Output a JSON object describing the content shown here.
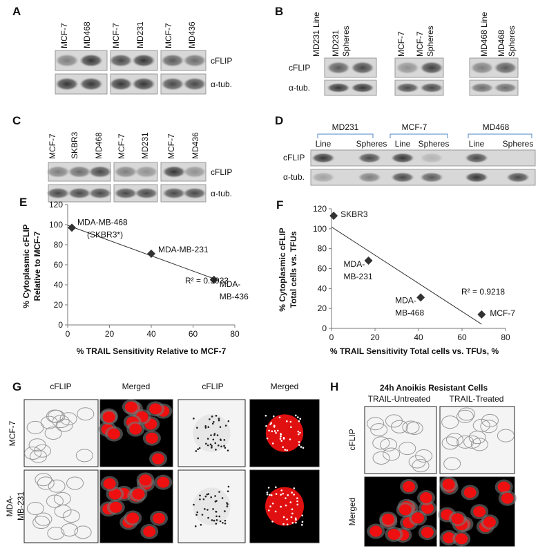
{
  "panels": {
    "A": {
      "label": "A",
      "lanes": [
        "MCF-7",
        "MD468",
        "MCF-7",
        "MD231",
        "MCF-7",
        "MD436"
      ],
      "rows": [
        "cFLIP",
        "α-tub."
      ]
    },
    "B": {
      "label": "B",
      "lanes": [
        [
          "MD231 Line"
        ],
        [
          "MD231",
          "Spheres"
        ],
        [
          "MCF-7"
        ],
        [
          "MCF-7",
          "Spheres"
        ],
        [
          "MD468 Line"
        ],
        [
          "MD468",
          "Spheres"
        ]
      ],
      "rows": [
        "cFLIP",
        "α-tub."
      ]
    },
    "C": {
      "label": "C",
      "lanes": [
        "MCF-7",
        "SKBR3",
        "MD468",
        "MCF-7",
        "MD231",
        "MCF-7",
        "MD436"
      ],
      "rows": [
        "cFLIP",
        "α-tub."
      ]
    },
    "D": {
      "label": "D",
      "groups": [
        "MD231",
        "MCF-7",
        "MD468"
      ],
      "lanes": [
        "Line",
        "Spheres",
        "Line",
        "Spheres",
        "Line",
        "Spheres"
      ],
      "rows": [
        "cFLIP",
        "α-tub."
      ]
    },
    "G": {
      "label": "G",
      "columns": [
        "cFLIP",
        "Merged",
        "cFLIP",
        "Merged"
      ],
      "rows": [
        [
          "MCF-7"
        ],
        [
          "MDA-",
          "MB-231"
        ]
      ]
    },
    "H": {
      "label": "H",
      "title": "24h Anoikis Resistant Cells",
      "columns": [
        "TRAIL-Untreated",
        "TRAIL-Treated"
      ],
      "rows": [
        "cFLIP",
        "Merged"
      ]
    }
  },
  "chart_data": [
    {
      "type": "scatter",
      "panel_label": "E",
      "x_label": "% TRAIL Sensitivity Relative to MCF-7",
      "y_label": [
        "% Cytoplasmic cFLIP",
        "Relative to MCF-7"
      ],
      "x": [
        2,
        40,
        70
      ],
      "values": [
        97,
        71,
        45
      ],
      "color": "#333333",
      "trendline": true,
      "point_labels": [
        [
          "MDA-MB-468",
          "(SKBR3*)"
        ],
        [
          "MDA-MB-231"
        ],
        [
          "MDA-",
          "MB-436"
        ]
      ],
      "annotation": "R² = 0.9933",
      "xlim": [
        0,
        80
      ],
      "xticks": [
        0,
        20,
        40,
        60,
        80
      ],
      "ylim": [
        0,
        120
      ],
      "yticks": [
        0,
        20,
        40,
        60,
        80,
        100,
        120
      ]
    },
    {
      "type": "scatter",
      "panel_label": "F",
      "x_label": "% TRAIL Sensitivity Total cells vs. TFUs, %",
      "y_label": [
        "% Cytoplasmic cFLIP",
        "Total cells vs. TFUs"
      ],
      "x": [
        1,
        17,
        41,
        69
      ],
      "values": [
        113,
        68,
        31,
        14
      ],
      "color": "#333333",
      "trendline": true,
      "point_labels": [
        [
          "SKBR3"
        ],
        [
          "MDA-",
          "MB-231"
        ],
        [
          "MDA-",
          "MB-468"
        ],
        [
          "MCF-7"
        ]
      ],
      "annotation": "R² = 0.9218",
      "xlim": [
        0,
        80
      ],
      "xticks": [
        0,
        20,
        40,
        60,
        80
      ],
      "ylim": [
        0,
        120
      ],
      "yticks": [
        0,
        20,
        40,
        60,
        80,
        100,
        120
      ]
    }
  ]
}
